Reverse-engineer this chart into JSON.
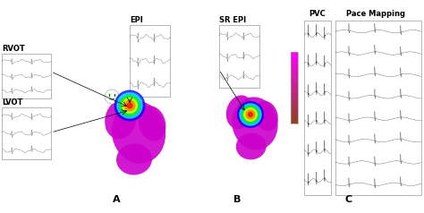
{
  "title": "",
  "background_color": "#ffffff",
  "panels": {
    "A_label": "A",
    "B_label": "B",
    "C_label": "C",
    "RVOT_label": "RVOT",
    "LVOT_label": "LVOT",
    "EPI_label": "EPI",
    "SR_EPI_label": "SR EPI",
    "PVC_label": "PVC",
    "PM_label": "Pace Mapping"
  },
  "heart_A_color": "#cc00cc",
  "heart_B_color": "#cc00cc",
  "colormap_colors": [
    "#ff0000",
    "#ff7700",
    "#ffff00",
    "#00ff00",
    "#00ffff",
    "#0000ff"
  ],
  "colorbar_top": "#ff00ff",
  "colorbar_bottom": "#8B4513",
  "ecg_color": "#555555",
  "border_color": "#aaaaaa",
  "label_fontsize": 6,
  "sublabel_fontsize": 5
}
